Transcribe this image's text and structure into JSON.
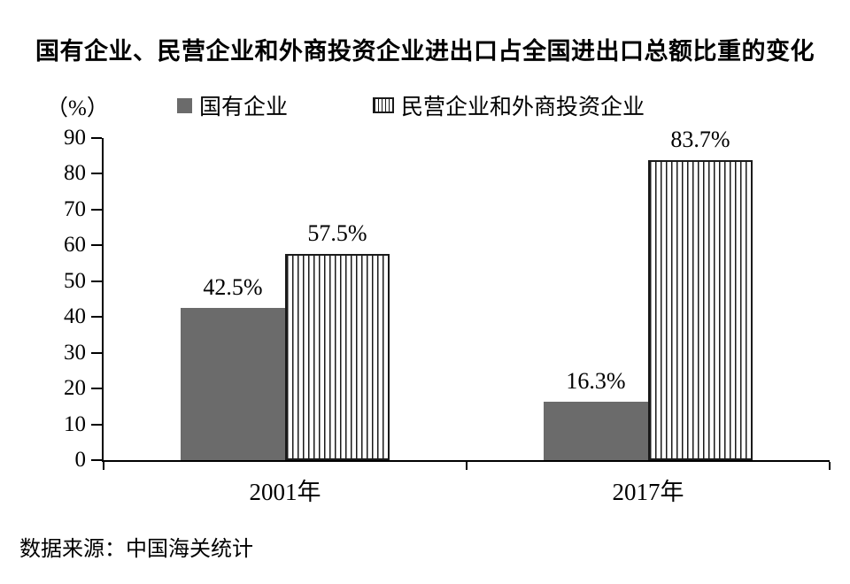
{
  "title": "国有企业、民营企业和外商投资企业进出口占全国进出口总额比重的变化",
  "unit_label": "（%）",
  "source": "数据来源：中国海关统计",
  "legend": {
    "items": [
      {
        "label": "国有企业",
        "style": "solid"
      },
      {
        "label": "民营企业和外商投资企业",
        "style": "striped"
      }
    ]
  },
  "chart_data": {
    "type": "bar",
    "title": "国有企业、民营企业和外商投资企业进出口占全国进出口总额比重的变化",
    "categories": [
      "2001年",
      "2017年"
    ],
    "series": [
      {
        "name": "国有企业",
        "style": "solid",
        "values": [
          42.5,
          16.3
        ],
        "labels": [
          "42.5%",
          "16.3%"
        ]
      },
      {
        "name": "民营企业和外商投资企业",
        "style": "striped",
        "values": [
          57.5,
          83.7
        ],
        "labels": [
          "57.5%",
          "83.7%"
        ]
      }
    ],
    "ylabel": "（%）",
    "ylim": [
      0,
      90
    ],
    "yticks": [
      0,
      10,
      20,
      30,
      40,
      50,
      60,
      70,
      80,
      90
    ],
    "grid": false,
    "legend_position": "top",
    "source": "数据来源：中国海关统计"
  },
  "colors": {
    "solid_bar": "#6b6b6b",
    "stripe_line": "#1a1a1a",
    "axis": "#000000",
    "background": "#ffffff"
  }
}
